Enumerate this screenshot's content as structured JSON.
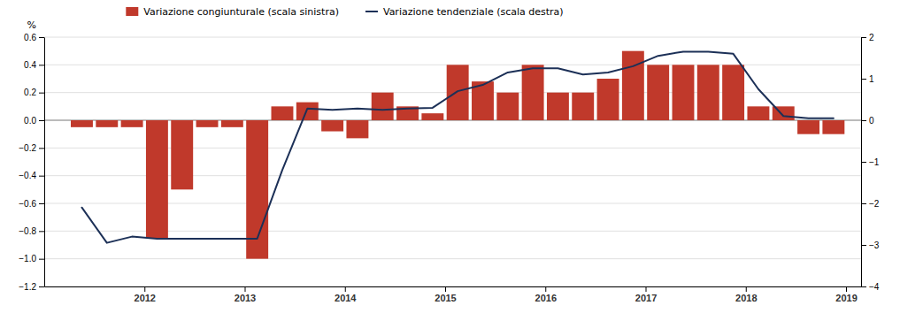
{
  "chart_data": {
    "type": "bar",
    "ylabel": "%",
    "x": [
      2011.375,
      2011.625,
      2011.875,
      2012.125,
      2012.375,
      2012.625,
      2012.875,
      2013.125,
      2013.375,
      2013.625,
      2013.875,
      2014.125,
      2014.375,
      2014.625,
      2014.875,
      2015.125,
      2015.375,
      2015.625,
      2015.875,
      2016.125,
      2016.375,
      2016.625,
      2016.875,
      2017.125,
      2017.375,
      2017.625,
      2017.875,
      2018.125,
      2018.375,
      2018.625,
      2018.875
    ],
    "series": [
      {
        "name": "Variazione congiunturale (scala sinistra)",
        "type": "bar",
        "color": "#C0392B",
        "values": [
          -0.05,
          -0.05,
          -0.05,
          -0.85,
          -0.5,
          -0.05,
          -0.05,
          -1.0,
          0.1,
          0.13,
          -0.08,
          -0.13,
          0.2,
          0.1,
          0.05,
          0.4,
          0.28,
          0.2,
          0.4,
          0.2,
          0.2,
          0.3,
          0.5,
          0.4,
          0.4,
          0.4,
          0.4,
          0.1,
          0.1,
          -0.1,
          -0.1
        ]
      },
      {
        "name": "Variazione tendenziale (scala destra)",
        "type": "line",
        "axis": "y2",
        "color": "#1C3057",
        "values": [
          -2.1,
          -2.95,
          -2.8,
          -2.85,
          -2.85,
          -2.85,
          -2.85,
          -2.85,
          -1.2,
          0.28,
          0.25,
          0.28,
          0.25,
          0.28,
          0.3,
          0.7,
          0.85,
          1.15,
          1.25,
          1.25,
          1.1,
          1.15,
          1.3,
          1.55,
          1.65,
          1.65,
          1.6,
          0.75,
          0.1,
          0.05,
          0.05
        ]
      }
    ],
    "xlim": [
      2011.0,
      2019.15
    ],
    "xticks": [
      2012,
      2013,
      2014,
      2015,
      2016,
      2017,
      2018,
      2019
    ],
    "ylim": [
      -1.2,
      0.6
    ],
    "yticks": [
      {
        "value": -1.2,
        "label": "−1.2"
      },
      {
        "value": -1.0,
        "label": "−1.0"
      },
      {
        "value": -0.8,
        "label": "−0.8"
      },
      {
        "value": -0.6,
        "label": "−0.6"
      },
      {
        "value": -0.4,
        "label": "−0.4"
      },
      {
        "value": -0.2,
        "label": "−0.2"
      },
      {
        "value": 0.0,
        "label": "0.0"
      },
      {
        "value": 0.2,
        "label": "0.2"
      },
      {
        "value": 0.4,
        "label": "0.4"
      },
      {
        "value": 0.6,
        "label": "0.6"
      }
    ],
    "y2lim": [
      -4.0,
      2.0
    ],
    "y2ticks": [
      {
        "value": -4.0,
        "label": "−4"
      },
      {
        "value": -3.0,
        "label": "−3"
      },
      {
        "value": -2.0,
        "label": "−2"
      },
      {
        "value": -1.0,
        "label": "−1"
      },
      {
        "value": 0.0,
        "label": "0"
      },
      {
        "value": 1.0,
        "label": "1"
      },
      {
        "value": 2.0,
        "label": "2"
      }
    ],
    "grid": true,
    "legend": "upper left"
  }
}
